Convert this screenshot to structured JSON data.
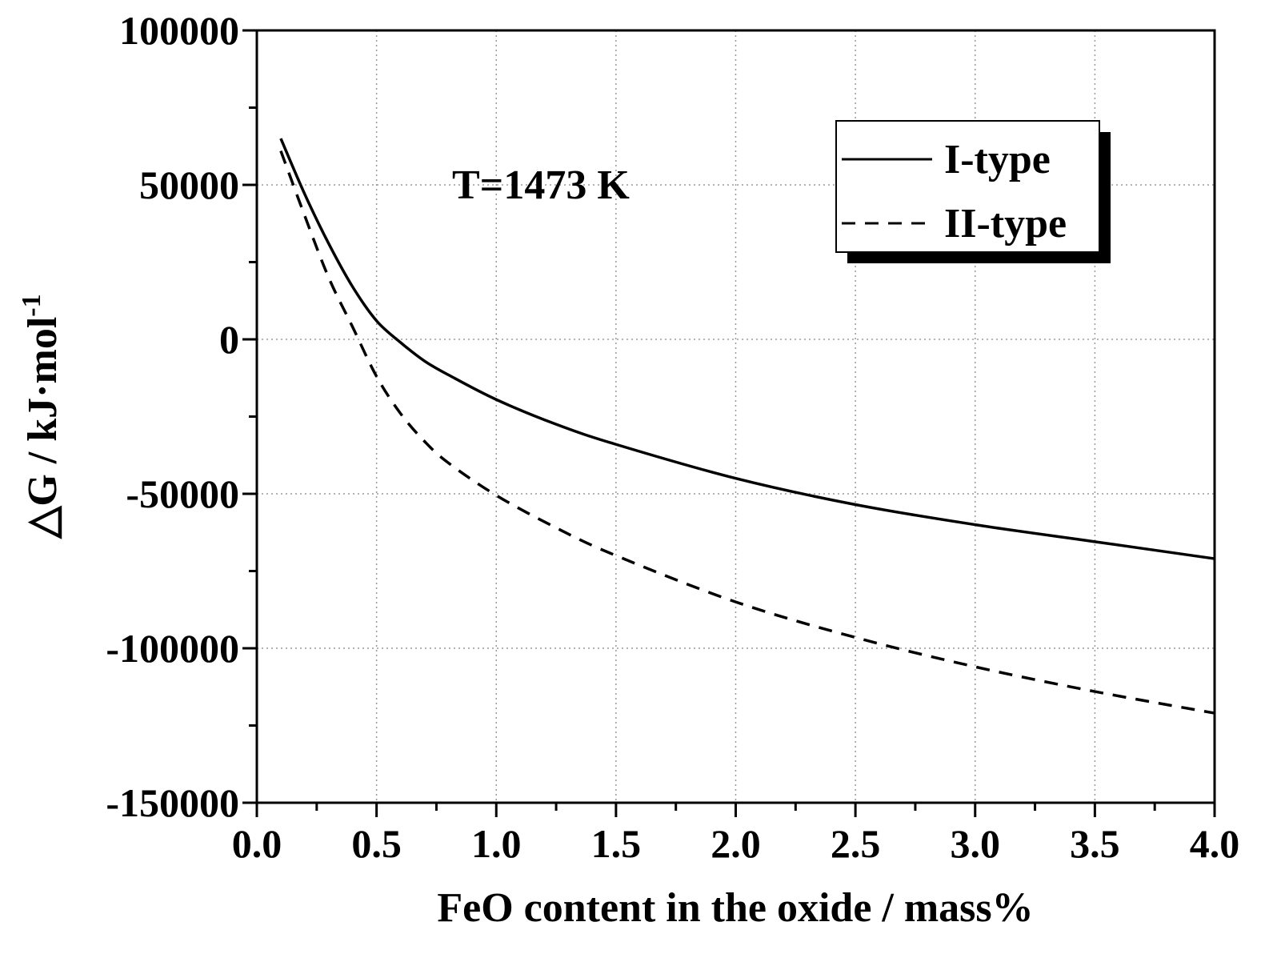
{
  "chart_data": {
    "type": "line",
    "title": "",
    "xlabel": "FeO content in the oxide / mass%",
    "ylabel_main": "△G / kJ·mol",
    "ylabel_sup": "-1",
    "annotation": "T=1473 K",
    "xlim": [
      0.0,
      4.0
    ],
    "ylim": [
      -150000,
      100000
    ],
    "xticks": [
      0.0,
      0.5,
      1.0,
      1.5,
      2.0,
      2.5,
      3.0,
      3.5,
      4.0
    ],
    "xtick_labels": [
      "0.0",
      "0.5",
      "1.0",
      "1.5",
      "2.0",
      "2.5",
      "3.0",
      "3.5",
      "4.0"
    ],
    "yticks": [
      -150000,
      -100000,
      -50000,
      0,
      50000,
      100000
    ],
    "ytick_labels": [
      "-150000",
      "-100000",
      "-50000",
      "0",
      "50000",
      "100000"
    ],
    "grid": true,
    "legend_position": "top-right",
    "series": [
      {
        "name": "I-type",
        "style": "solid",
        "x": [
          0.1,
          0.2,
          0.3,
          0.4,
          0.5,
          0.6,
          0.7,
          0.8,
          1.0,
          1.25,
          1.5,
          2.0,
          2.5,
          3.0,
          3.5,
          4.0
        ],
        "y": [
          65000,
          47000,
          31000,
          17000,
          6000,
          -1000,
          -7000,
          -11500,
          -19500,
          -27500,
          -34000,
          -45000,
          -53500,
          -60000,
          -65500,
          -71000
        ]
      },
      {
        "name": "II-type",
        "style": "dashed",
        "x": [
          0.1,
          0.2,
          0.3,
          0.4,
          0.5,
          0.6,
          0.7,
          0.8,
          1.0,
          1.25,
          1.5,
          2.0,
          2.5,
          3.0,
          3.5,
          4.0
        ],
        "y": [
          61000,
          40000,
          20000,
          4000,
          -12000,
          -24000,
          -33000,
          -40000,
          -50500,
          -61000,
          -70000,
          -85000,
          -96500,
          -106000,
          -114000,
          -121000
        ]
      }
    ]
  }
}
